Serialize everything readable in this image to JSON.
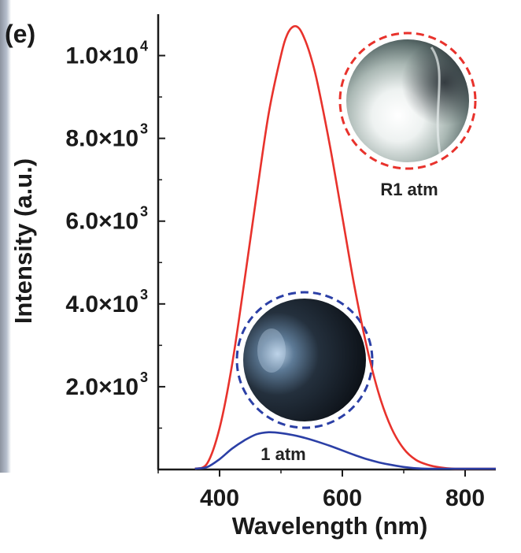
{
  "panel_label": "(e)",
  "chart_data": {
    "type": "line",
    "xlabel": "Wavelength (nm)",
    "ylabel": "Intensity (a.u.)",
    "xlim": [
      300,
      850
    ],
    "ylim": [
      0,
      11000
    ],
    "x_ticks": [
      400,
      600,
      800
    ],
    "y_ticks": [
      {
        "value": 2000,
        "mantissa": "2.0×10",
        "exponent": "3"
      },
      {
        "value": 4000,
        "mantissa": "4.0×10",
        "exponent": "3"
      },
      {
        "value": 6000,
        "mantissa": "6.0×10",
        "exponent": "3"
      },
      {
        "value": 8000,
        "mantissa": "8.0×10",
        "exponent": "3"
      },
      {
        "value": 10000,
        "mantissa": "1.0×10",
        "exponent": "4"
      }
    ],
    "grid": false,
    "series": [
      {
        "name": "R1 atm",
        "color": "#e8322c",
        "x": [
          360,
          380,
          400,
          420,
          440,
          460,
          480,
          500,
          510,
          520,
          530,
          540,
          550,
          560,
          580,
          600,
          620,
          640,
          660,
          680,
          700,
          720,
          740,
          760,
          780,
          800,
          850
        ],
        "y": [
          0,
          150,
          1000,
          2500,
          4500,
          6600,
          8600,
          10000,
          10500,
          10700,
          10650,
          10350,
          9900,
          9300,
          7800,
          6100,
          4400,
          2950,
          1800,
          1000,
          500,
          230,
          110,
          50,
          20,
          10,
          0
        ]
      },
      {
        "name": "1 atm",
        "color": "#2b3fa6",
        "x": [
          360,
          380,
          400,
          420,
          440,
          460,
          480,
          500,
          520,
          540,
          560,
          580,
          600,
          620,
          640,
          660,
          680,
          700,
          720,
          740,
          760,
          800,
          850
        ],
        "y": [
          0,
          60,
          250,
          500,
          700,
          850,
          900,
          880,
          830,
          760,
          670,
          570,
          460,
          350,
          250,
          170,
          110,
          60,
          30,
          15,
          5,
          0,
          0
        ]
      }
    ],
    "insets": [
      {
        "label": "R1 atm",
        "ring_color": "#e8322c"
      },
      {
        "label": "1 atm",
        "ring_color": "#2b3fa6"
      }
    ]
  }
}
